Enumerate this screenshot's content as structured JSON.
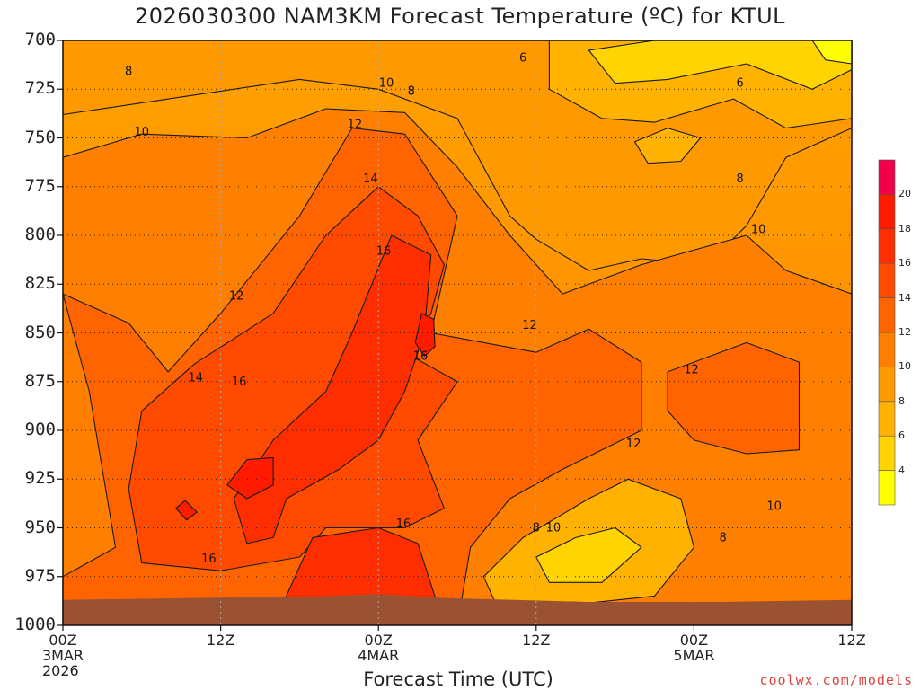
{
  "chart_data": {
    "type": "heatmap",
    "title": "2026030300 NAM3KM Forecast Temperature (ºC) for KTUL",
    "xlabel": "Forecast Time (UTC)",
    "ylabel": "",
    "x_ticks": [
      {
        "hour": 0,
        "lines": [
          "00Z",
          "3MAR",
          "2026"
        ]
      },
      {
        "hour": 12,
        "lines": [
          "12Z"
        ]
      },
      {
        "hour": 24,
        "lines": [
          "00Z",
          "4MAR"
        ]
      },
      {
        "hour": 36,
        "lines": [
          "12Z"
        ]
      },
      {
        "hour": 48,
        "lines": [
          "00Z",
          "5MAR"
        ]
      },
      {
        "hour": 60,
        "lines": [
          "12Z"
        ]
      }
    ],
    "xlim": [
      0,
      60
    ],
    "y_ticks": [
      700,
      725,
      750,
      775,
      800,
      825,
      850,
      875,
      900,
      925,
      950,
      975,
      1000
    ],
    "ylim": [
      700,
      1000
    ],
    "colorbar": {
      "levels": [
        2,
        4,
        6,
        8,
        10,
        12,
        14,
        16,
        18,
        20,
        22
      ],
      "labels": [
        "4",
        "6",
        "8",
        "10",
        "12",
        "14",
        "16",
        "18",
        "20"
      ],
      "colors": [
        "#ffff00",
        "#ffd400",
        "#ffb300",
        "#ff9900",
        "#ff8000",
        "#ff6400",
        "#ff4a00",
        "#ff2e00",
        "#ff1a00",
        "#f0004a"
      ]
    },
    "ground_color": "#9a5232",
    "contours": [
      {
        "label": "6",
        "x": 35.0,
        "p": 709
      },
      {
        "label": "6",
        "x": 51.5,
        "p": 722
      },
      {
        "label": "8",
        "x": 5.0,
        "p": 716
      },
      {
        "label": "8",
        "x": 26.5,
        "p": 726
      },
      {
        "label": "8",
        "x": 51.5,
        "p": 771
      },
      {
        "label": "8",
        "x": 36.0,
        "p": 950
      },
      {
        "label": "8",
        "x": 50.2,
        "p": 955
      },
      {
        "label": "10",
        "x": 24.6,
        "p": 722
      },
      {
        "label": "10",
        "x": 6.0,
        "p": 747
      },
      {
        "label": "10",
        "x": 52.9,
        "p": 797
      },
      {
        "label": "10",
        "x": 37.3,
        "p": 950
      },
      {
        "label": "10",
        "x": 54.1,
        "p": 939
      },
      {
        "label": "12",
        "x": 22.2,
        "p": 743
      },
      {
        "label": "12",
        "x": 13.2,
        "p": 831
      },
      {
        "label": "12",
        "x": 35.5,
        "p": 846
      },
      {
        "label": "12",
        "x": 47.8,
        "p": 869
      },
      {
        "label": "12",
        "x": 43.4,
        "p": 907
      },
      {
        "label": "14",
        "x": 23.4,
        "p": 771
      },
      {
        "label": "14",
        "x": 10.1,
        "p": 873
      },
      {
        "label": "16",
        "x": 24.4,
        "p": 808
      },
      {
        "label": "16",
        "x": 13.4,
        "p": 875
      },
      {
        "label": "16",
        "x": 27.2,
        "p": 862
      },
      {
        "label": "16",
        "x": 25.9,
        "p": 948
      },
      {
        "label": "16",
        "x": 11.1,
        "p": 966
      }
    ]
  },
  "credit": "coolwx.com/models"
}
